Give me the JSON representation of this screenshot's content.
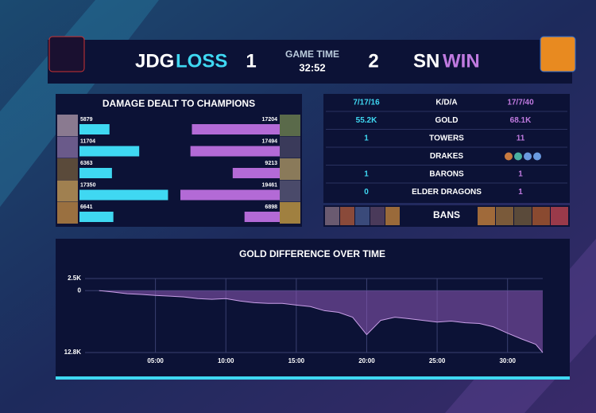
{
  "header": {
    "team1": {
      "name": "JDG",
      "result": "LOSS",
      "score": 1
    },
    "game_time_label": "GAME TIME",
    "game_time": "32:52",
    "team2": {
      "name": "SN",
      "result": "WIN",
      "score": 2
    }
  },
  "stats": {
    "rows": [
      {
        "left": "7/17/16",
        "label": "K/D/A",
        "right": "17/7/40"
      },
      {
        "left": "55.2K",
        "label": "GOLD",
        "right": "68.1K"
      },
      {
        "left": "1",
        "label": "TOWERS",
        "right": "11"
      },
      {
        "label": "DRAKES"
      },
      {
        "left": "1",
        "label": "BARONS",
        "right": "1"
      },
      {
        "left": "0",
        "label": "ELDER DRAGONS",
        "right": "1"
      }
    ],
    "bans_label": "BANS"
  },
  "chart_data": [
    {
      "type": "bar",
      "title": "DAMAGE DEALT TO CHAMPIONS",
      "series": [
        {
          "color": "#3fd8f2",
          "values": [
            5879,
            11704,
            6363,
            17350,
            6641
          ]
        },
        {
          "color": "#b36ad6",
          "values": [
            17204,
            17494,
            9213,
            19461,
            6898
          ]
        }
      ]
    },
    {
      "type": "area",
      "title": "GOLD DIFFERENCE OVER TIME",
      "color": "#8f5ab8",
      "grid": true,
      "x": [
        1,
        2,
        3,
        4,
        5,
        6,
        7,
        8,
        9,
        10,
        11,
        12,
        13,
        14,
        15,
        16,
        17,
        18,
        19,
        20,
        21,
        22,
        23,
        24,
        25,
        26,
        27,
        28,
        29,
        30,
        31,
        32,
        32.5
      ],
      "values": [
        0,
        -300,
        -650,
        -800,
        -1000,
        -1150,
        -1300,
        -1650,
        -1800,
        -1650,
        -2150,
        -2500,
        -2650,
        -2650,
        -3000,
        -3300,
        -4150,
        -4500,
        -5500,
        -9100,
        -6150,
        -5500,
        -5800,
        -6150,
        -6500,
        -6300,
        -6650,
        -6800,
        -7500,
        -8800,
        -10000,
        -11100,
        -12800
      ],
      "xlim": [
        0,
        32.5
      ],
      "xticks": [
        {
          "value": 5,
          "label": "05:00"
        },
        {
          "value": 10,
          "label": "10:00"
        },
        {
          "value": 15,
          "label": "15:00"
        },
        {
          "value": 20,
          "label": "20:00"
        },
        {
          "value": 25,
          "label": "25:00"
        },
        {
          "value": 30,
          "label": "30:00"
        }
      ],
      "ylim": [
        -12800,
        2500
      ],
      "yticks": [
        {
          "value": 2500,
          "label": "2.5K"
        },
        0,
        {
          "value": -12800,
          "label": "12.8K"
        }
      ]
    }
  ]
}
